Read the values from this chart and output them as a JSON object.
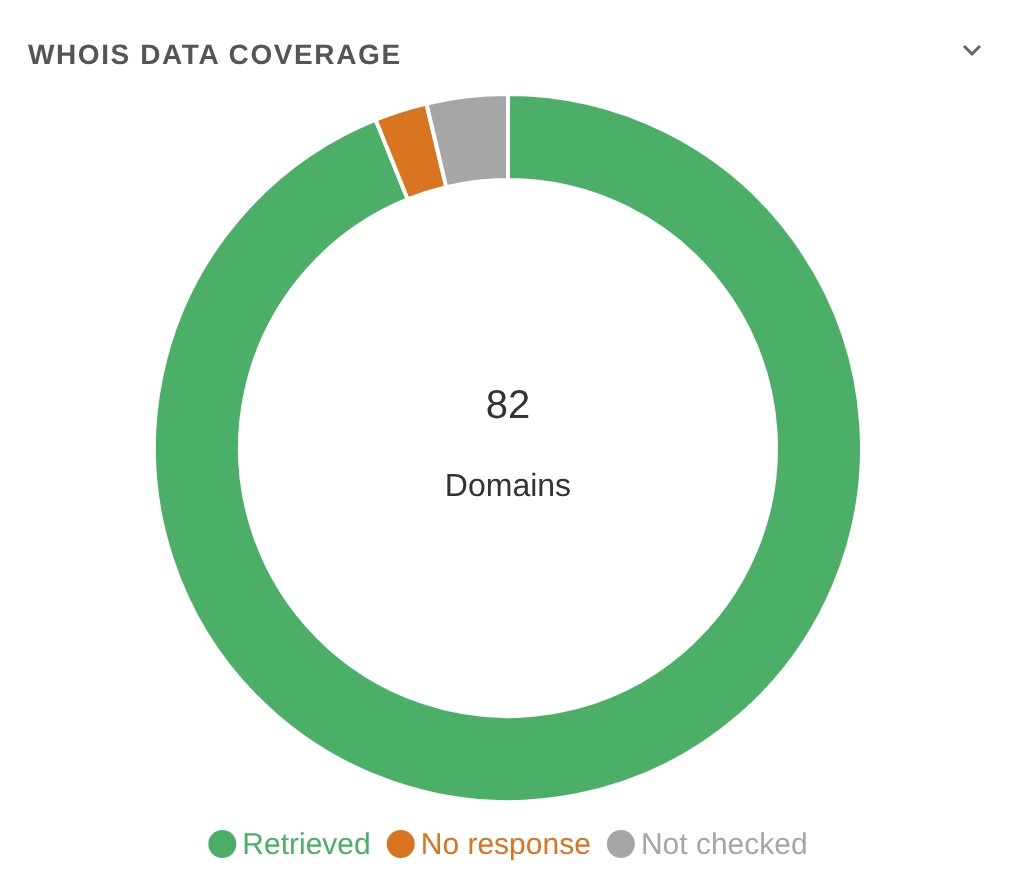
{
  "chart_data": {
    "type": "donut",
    "title": "WHOIS DATA COVERAGE",
    "categories": [
      "Retrieved",
      "No response",
      "Not checked"
    ],
    "values": [
      93.9,
      2.4,
      3.7
    ],
    "colors": [
      "#4caf68",
      "#d97420",
      "#a6a6a6"
    ],
    "annotations": [
      "82",
      "Domains"
    ],
    "legend": "bottom"
  }
}
